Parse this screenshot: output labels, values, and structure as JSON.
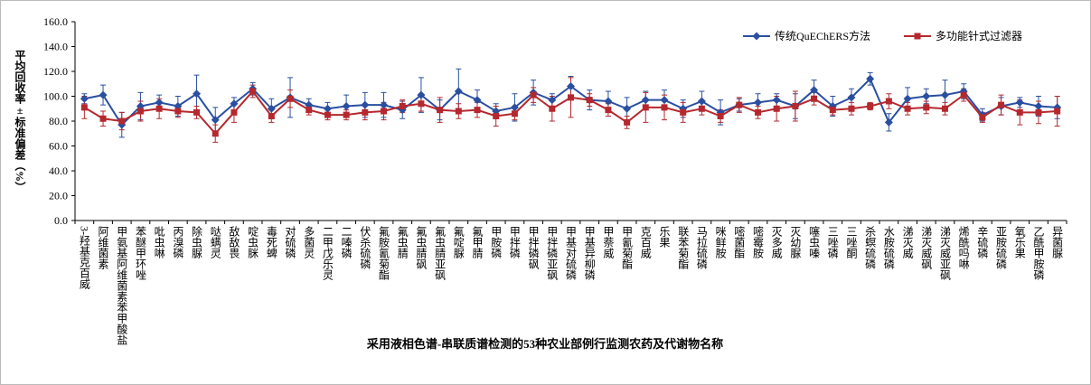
{
  "chart_data": {
    "type": "line",
    "x_label": "采用液相色谱-串联质谱检测的53种农业部例行监测农药及代谢物名称",
    "y_label": "平均回收率±标准偏差（%）",
    "categories": [
      "3-羟基克百威",
      "阿维菌素",
      "甲氨基阿维菌素苯甲酸盐",
      "苯醚甲环唑",
      "吡虫啉",
      "丙溴磷",
      "除虫脲",
      "哒螨灵",
      "敌敌畏",
      "啶虫脒",
      "毒死蜱",
      "对硫磷",
      "多菌灵",
      "二甲戊乐灵",
      "二嗪磷",
      "伏杀硫磷",
      "氟胺氰菊酯",
      "氟虫腈",
      "氟虫腈砜",
      "氟虫腈亚砜",
      "氟啶脲",
      "氟甲腈",
      "甲胺磷",
      "甲拌磷",
      "甲拌磷砜",
      "甲拌磷亚砜",
      "甲基对硫磷",
      "甲基异柳磷",
      "甲萘威",
      "甲氰菊酯",
      "克百威",
      "乐果",
      "联苯菊酯",
      "马拉硫磷",
      "咪鲜胺",
      "嘧菌酯",
      "嘧霉胺",
      "灭多威",
      "灭幼脲",
      "噻虫嗪",
      "三唑磷",
      "三唑酮",
      "杀螟硫磷",
      "水胺硫磷",
      "涕灭威",
      "涕灭威砜",
      "涕灭威亚砜",
      "烯酰吗啉",
      "辛硫磷",
      "亚胺硫磷",
      "氧乐果",
      "乙酰甲胺磷",
      "异菌脲"
    ],
    "series": [
      {
        "name": "传统QuEChERS方法",
        "color": "#2a4fa0",
        "marker": "diamond",
        "values": [
          98,
          101,
          77,
          92,
          95,
          92,
          102,
          81,
          94,
          106,
          90,
          99,
          93,
          90,
          92,
          93,
          93,
          89,
          101,
          89,
          104,
          97,
          88,
          91,
          103,
          97,
          108,
          97,
          96,
          90,
          97,
          97,
          90,
          96,
          87,
          93,
          95,
          97,
          92,
          105,
          92,
          99,
          114,
          79,
          98,
          100,
          101,
          104,
          85,
          92,
          95,
          92,
          91
        ],
        "errors": [
          4,
          8,
          10,
          11,
          6,
          8,
          15,
          10,
          5,
          5,
          8,
          16,
          5,
          5,
          9,
          10,
          10,
          7,
          14,
          8,
          18,
          8,
          6,
          11,
          10,
          5,
          8,
          8,
          8,
          9,
          7,
          8,
          7,
          8,
          10,
          5,
          7,
          5,
          10,
          8,
          8,
          7,
          5,
          7,
          9,
          6,
          12,
          6,
          5,
          7,
          4,
          8,
          9
        ]
      },
      {
        "name": "多功能针式过滤器",
        "color": "#b5282e",
        "marker": "square",
        "values": [
          91,
          82,
          80,
          88,
          90,
          88,
          87,
          70,
          87,
          104,
          84,
          98,
          89,
          85,
          85,
          87,
          88,
          92,
          94,
          89,
          88,
          89,
          84,
          86,
          101,
          90,
          99,
          97,
          89,
          79,
          91,
          91,
          87,
          90,
          84,
          93,
          87,
          90,
          92,
          98,
          89,
          90,
          92,
          96,
          90,
          91,
          90,
          101,
          83,
          93,
          87,
          87,
          88
        ],
        "errors": [
          9,
          6,
          7,
          8,
          8,
          5,
          5,
          7,
          8,
          5,
          5,
          7,
          4,
          4,
          4,
          6,
          7,
          5,
          6,
          10,
          6,
          6,
          8,
          5,
          6,
          10,
          16,
          5,
          5,
          5,
          12,
          10,
          8,
          5,
          5,
          6,
          5,
          10,
          12,
          5,
          4,
          5,
          3,
          6,
          5,
          5,
          5,
          5,
          4,
          8,
          10,
          9,
          12
        ]
      }
    ],
    "ylim": [
      0,
      160
    ],
    "yticks": [
      {
        "value": 0,
        "label": "0.0"
      },
      {
        "value": 20,
        "label": "20.0"
      },
      {
        "value": 40,
        "label": "40.0"
      },
      {
        "value": 60,
        "label": "60.0"
      },
      {
        "value": 80,
        "label": "80.0"
      },
      {
        "value": 100,
        "label": "100.0"
      },
      {
        "value": 120,
        "label": "120.0"
      },
      {
        "value": 140,
        "label": "140.0"
      },
      {
        "value": 160,
        "label": "160.0"
      }
    ],
    "grid": false,
    "legend": "top-right"
  }
}
